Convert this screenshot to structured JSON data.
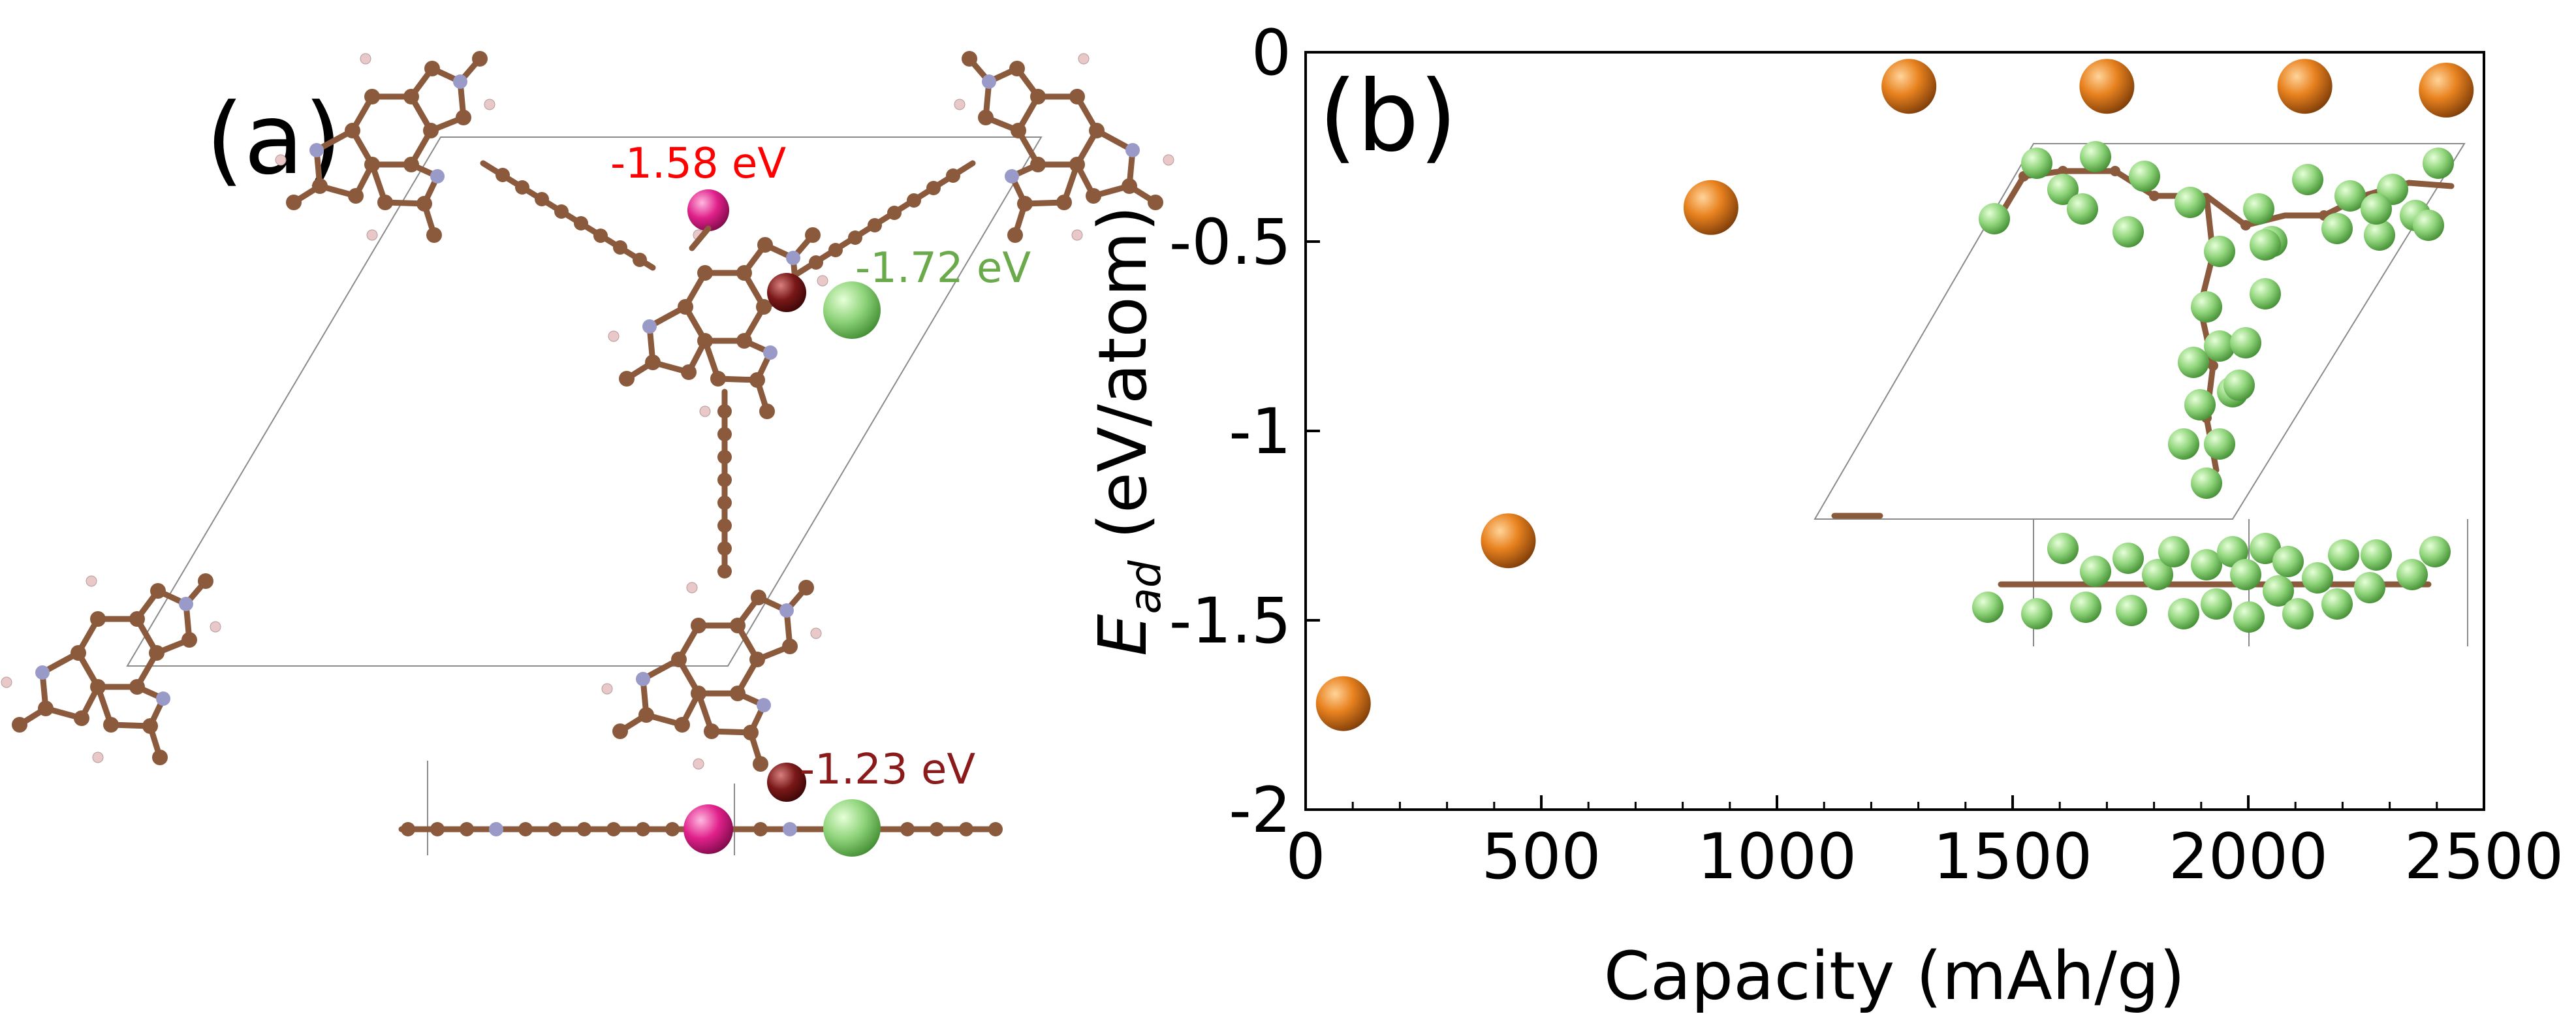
{
  "panel_a": {
    "label": "(a)",
    "sites": [
      {
        "label": "-1.58 eV",
        "color": "#ff0000",
        "atom_color": "#e0208a"
      },
      {
        "label": "-1.72 eV",
        "color": "#6aaa4a",
        "atom_color": "#7ac86a"
      },
      {
        "label": "-1.23 eV",
        "color": "#8b1a1a",
        "atom_color": "#7a1818"
      }
    ]
  },
  "panel_b": {
    "label": "(b)",
    "marker_color": "#e07a20",
    "inset_atom_color": "#8fd47a"
  },
  "chart_data": {
    "type": "scatter",
    "title": "",
    "xlabel": "Capacity (mAh/g)",
    "ylabel_main": "E",
    "ylabel_sub": "ad",
    "ylabel_unit": " (eV/atom)",
    "xlim": [
      0,
      2500
    ],
    "ylim": [
      -2,
      0
    ],
    "xticks": [
      0,
      500,
      1000,
      1500,
      2000,
      2500
    ],
    "xtick_labels": [
      "0",
      "500",
      "1000",
      "1500",
      "2000",
      "2500"
    ],
    "yticks": [
      0,
      -0.5,
      -1,
      -1.5,
      -2
    ],
    "ytick_labels": [
      "0",
      "-0.5",
      "-1",
      "-1.5",
      "-2"
    ],
    "grid": false,
    "series": [
      {
        "name": "Ead",
        "x": [
          80,
          430,
          860,
          1280,
          1700,
          2120,
          2420
        ],
        "y": [
          -1.72,
          -1.29,
          -0.41,
          -0.09,
          -0.09,
          -0.09,
          -0.1
        ]
      }
    ]
  }
}
